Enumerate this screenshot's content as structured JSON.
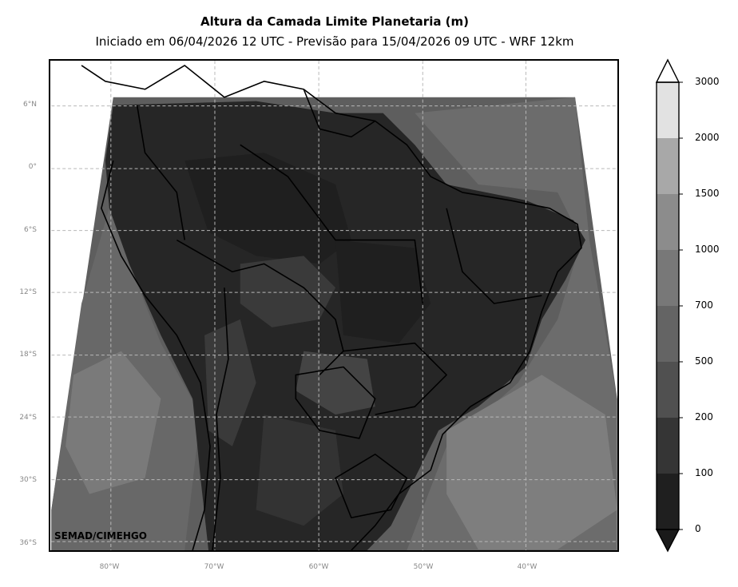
{
  "title": "Altura da Camada Limite Planetaria (m)",
  "subtitle": "Iniciado em 06/04/2026 12 UTC - Previsão para 15/04/2026 09 UTC - WRF 12km",
  "credit": "SEMAD/CIMEHGO",
  "map": {
    "lat_labels": [
      "6°N",
      "0°",
      "6°S",
      "12°S",
      "18°S",
      "24°S",
      "30°S",
      "36°S"
    ],
    "lon_labels": [
      "80°W",
      "70°W",
      "60°W",
      "50°W",
      "40°W"
    ],
    "gridlines": "dashed"
  },
  "colorbar": {
    "levels": [
      "0",
      "100",
      "200",
      "500",
      "700",
      "1000",
      "1500",
      "2000",
      "3000"
    ],
    "colors": [
      "#1f1f1f",
      "#353535",
      "#505050",
      "#646464",
      "#787878",
      "#8c8c8c",
      "#a8a8a8",
      "#e2e2e2"
    ],
    "extend": "both"
  }
}
